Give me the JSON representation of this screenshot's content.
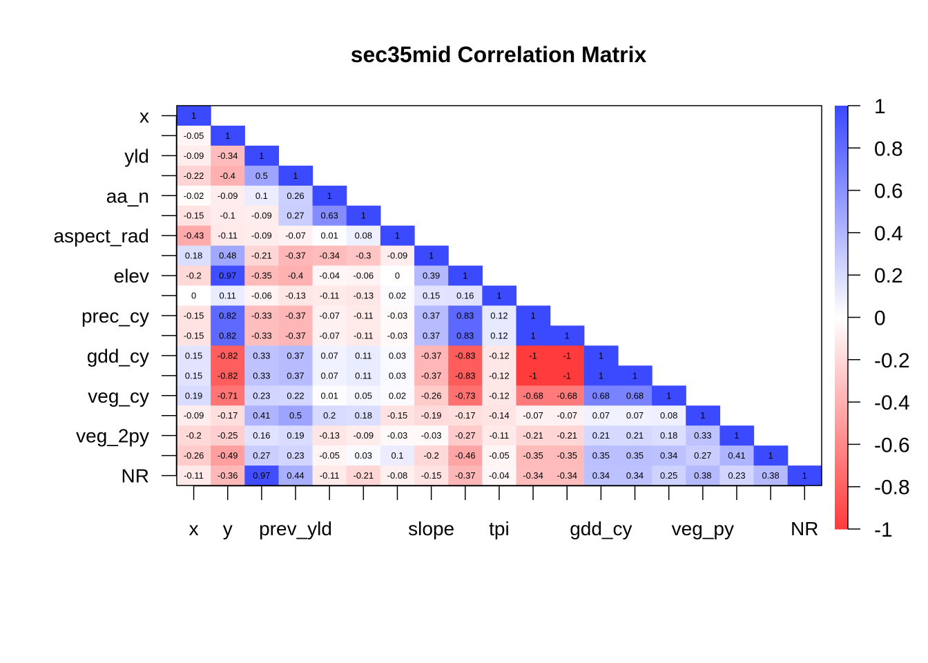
{
  "chart_data": {
    "type": "heatmap",
    "title": "sec35mid Correlation Matrix",
    "row_labels": [
      "x",
      "",
      "yld",
      "",
      "aa_n",
      "",
      "aspect_rad",
      "",
      "elev",
      "",
      "prec_cy",
      "",
      "gdd_cy",
      "",
      "veg_cy",
      "",
      "veg_2py",
      "",
      "NR"
    ],
    "col_labels": [
      "x",
      "y",
      "prev_yld",
      "",
      "",
      "slope",
      "",
      "tpi",
      "",
      "gdd_cy",
      "",
      "veg_py",
      "",
      "",
      "NR"
    ],
    "col_label_slots": [
      0,
      1,
      3,
      7,
      9,
      12,
      15,
      18
    ],
    "values": [
      [
        1
      ],
      [
        -0.05,
        1
      ],
      [
        -0.09,
        -0.34,
        1
      ],
      [
        -0.22,
        -0.4,
        0.5,
        1
      ],
      [
        -0.02,
        -0.09,
        0.1,
        0.26,
        1
      ],
      [
        -0.15,
        -0.1,
        -0.09,
        0.27,
        0.63,
        1
      ],
      [
        -0.43,
        -0.11,
        -0.09,
        -0.07,
        0.01,
        0.08,
        1
      ],
      [
        0.18,
        0.48,
        -0.21,
        -0.37,
        -0.34,
        -0.3,
        -0.09,
        1
      ],
      [
        -0.2,
        0.97,
        -0.35,
        -0.4,
        -0.04,
        -0.06,
        0,
        0.39,
        1
      ],
      [
        0,
        0.11,
        -0.06,
        -0.13,
        -0.11,
        -0.13,
        0.02,
        0.15,
        0.16,
        1
      ],
      [
        -0.15,
        0.82,
        -0.33,
        -0.37,
        -0.07,
        -0.11,
        -0.03,
        0.37,
        0.83,
        0.12,
        1
      ],
      [
        -0.15,
        0.82,
        -0.33,
        -0.37,
        -0.07,
        -0.11,
        -0.03,
        0.37,
        0.83,
        0.12,
        1,
        1
      ],
      [
        0.15,
        -0.82,
        0.33,
        0.37,
        0.07,
        0.11,
        0.03,
        -0.37,
        -0.83,
        -0.12,
        -1,
        -1,
        1
      ],
      [
        0.15,
        -0.82,
        0.33,
        0.37,
        0.07,
        0.11,
        0.03,
        -0.37,
        -0.83,
        -0.12,
        -1,
        -1,
        1,
        1
      ],
      [
        0.19,
        -0.71,
        0.23,
        0.22,
        0.01,
        0.05,
        0.02,
        -0.26,
        -0.73,
        -0.12,
        -0.68,
        -0.68,
        0.68,
        0.68,
        1
      ],
      [
        -0.09,
        -0.17,
        0.41,
        0.5,
        0.2,
        0.18,
        -0.15,
        -0.19,
        -0.17,
        -0.14,
        -0.07,
        -0.07,
        0.07,
        0.07,
        0.08,
        1
      ],
      [
        -0.2,
        -0.25,
        0.16,
        0.19,
        -0.13,
        -0.09,
        -0.03,
        -0.03,
        -0.27,
        -0.11,
        -0.21,
        -0.21,
        0.21,
        0.21,
        0.18,
        0.33,
        1
      ],
      [
        -0.26,
        -0.49,
        0.27,
        0.23,
        -0.05,
        0.03,
        0.1,
        -0.2,
        -0.46,
        -0.05,
        -0.35,
        -0.35,
        0.35,
        0.35,
        0.34,
        0.27,
        0.41,
        1
      ],
      [
        -0.11,
        -0.36,
        0.97,
        0.44,
        -0.11,
        -0.21,
        -0.08,
        -0.15,
        -0.37,
        -0.04,
        -0.34,
        -0.34,
        0.34,
        0.34,
        0.25,
        0.38,
        0.23,
        0.38,
        1
      ]
    ],
    "colorbar": {
      "range": [
        -1,
        1
      ],
      "ticks": [
        "1",
        "0.8",
        "0.6",
        "0.4",
        "0.2",
        "0",
        "-0.2",
        "-0.4",
        "-0.6",
        "-0.8",
        "-1"
      ],
      "low_color": "#ff3b3b",
      "mid_color": "#ffffff",
      "high_color": "#3b49ff"
    },
    "grid": false,
    "legend": "right"
  }
}
